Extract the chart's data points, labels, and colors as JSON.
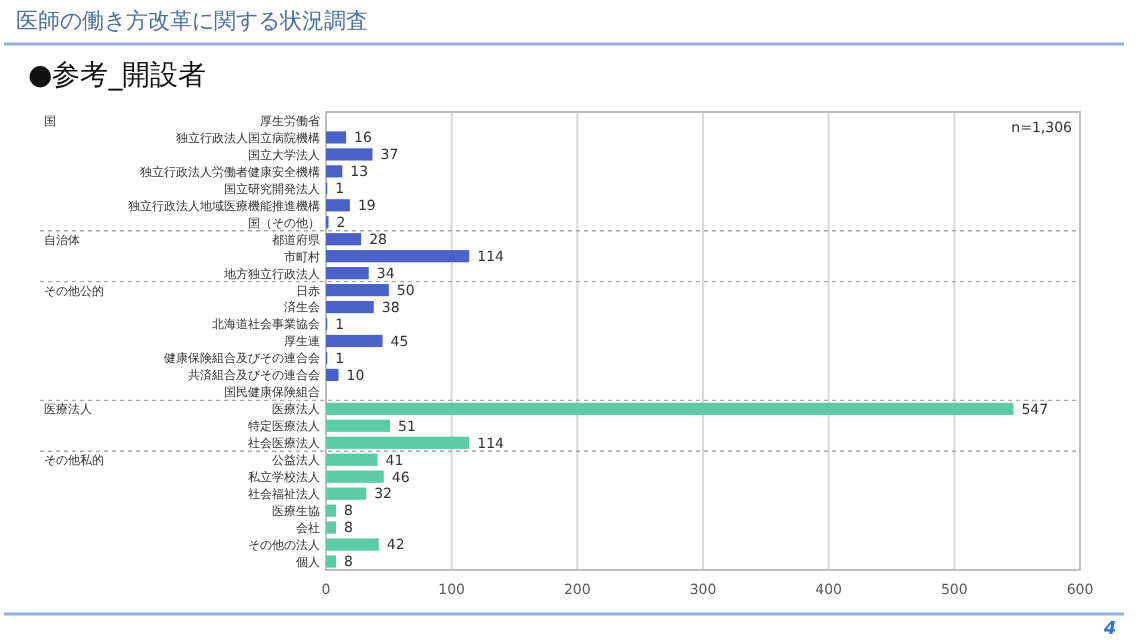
{
  "chart_data": {
    "type": "bar",
    "orientation": "horizontal",
    "title": "医師の働き方改革に関する状況調査",
    "subtitle": "●参考_開設者",
    "categories": [
      "厚生労働省",
      "独立行政法人国立病院機構",
      "国立大学法人",
      "独立行政法人労働者健康安全機構",
      "国立研究開発法人",
      "独立行政法人地域医療機能推進機構",
      "国（その他）",
      "都道府県",
      "市町村",
      "地方独立行政法人",
      "日赤",
      "済生会",
      "北海道社会事業協会",
      "厚生連",
      "健康保険組合及びその連合会",
      "共済組合及びその連合会",
      "国民健康保険組合",
      "医療法人",
      "特定医療法人",
      "社会医療法人",
      "公益法人",
      "私立学校法人",
      "社会福祉法人",
      "医療生協",
      "会社",
      "その他の法人",
      "個人"
    ],
    "values": [
      0,
      16,
      37,
      13,
      1,
      19,
      2,
      28,
      114,
      34,
      50,
      38,
      1,
      45,
      1,
      10,
      0,
      547,
      51,
      114,
      41,
      46,
      32,
      8,
      8,
      42,
      8
    ],
    "value_labels": [
      null,
      "16",
      "37",
      "13",
      "1",
      "19",
      "2",
      "28",
      "114",
      "34",
      "50",
      "38",
      "1",
      "45",
      "1",
      "10",
      null,
      "547",
      "51",
      "114",
      "41",
      "46",
      "32",
      "8",
      "8",
      "42",
      "8"
    ],
    "colors": [
      "#4a62c8",
      "#4a62c8",
      "#4a62c8",
      "#4a62c8",
      "#4a62c8",
      "#4a62c8",
      "#4a62c8",
      "#4a62c8",
      "#4a62c8",
      "#4a62c8",
      "#4a62c8",
      "#4a62c8",
      "#4a62c8",
      "#4a62c8",
      "#4a62c8",
      "#4a62c8",
      "#4a62c8",
      "#5ccba6",
      "#5ccba6",
      "#5ccba6",
      "#5ccba6",
      "#5ccba6",
      "#5ccba6",
      "#5ccba6",
      "#5ccba6",
      "#5ccba6",
      "#5ccba6"
    ],
    "xlim": [
      0,
      600
    ],
    "xticks": [
      0,
      100,
      200,
      300,
      400,
      500,
      600
    ],
    "grid": "x",
    "annotations": [
      "国",
      "自治体",
      "その他公的",
      "医療法人",
      "その他私的",
      "n=1,306",
      "4"
    ]
  }
}
